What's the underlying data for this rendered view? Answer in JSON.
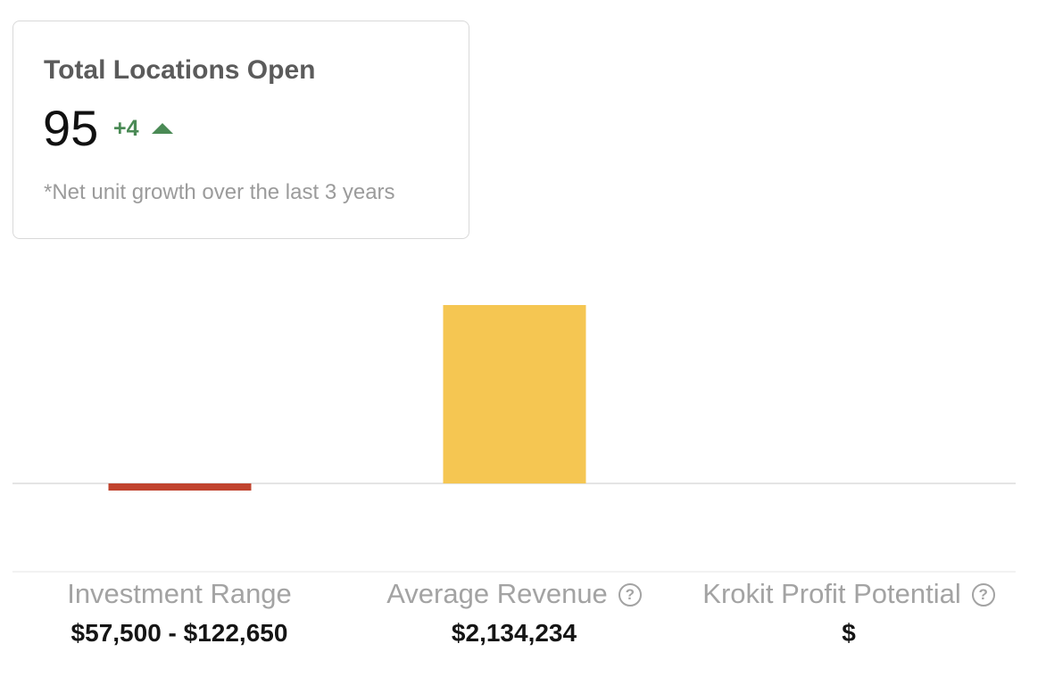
{
  "card": {
    "title": "Total Locations Open",
    "value": "95",
    "delta": "+4",
    "delta_icon": "triangle-up-icon",
    "note": "*Net unit growth over the last 3 years",
    "delta_color": "#4a8a55"
  },
  "metrics": [
    {
      "label": "Investment Range",
      "value": "$57,500 - $122,650",
      "has_help": false
    },
    {
      "label": "Average Revenue",
      "value": "$2,134,234",
      "has_help": true,
      "help_icon": "question-circle-icon",
      "help_text": "?"
    },
    {
      "label": "Krokit Profit Potential",
      "value": "$",
      "has_help": true,
      "help_icon": "question-circle-icon",
      "help_text": "?"
    }
  ],
  "chart_data": {
    "type": "bar",
    "categories": [
      "Investment Range",
      "Average Revenue",
      "Krokit Profit Potential"
    ],
    "values": [
      -0.04,
      1.0,
      0
    ],
    "colors": [
      "#c0432e",
      "#f5c652",
      "#f5c652"
    ],
    "grid": false
  }
}
